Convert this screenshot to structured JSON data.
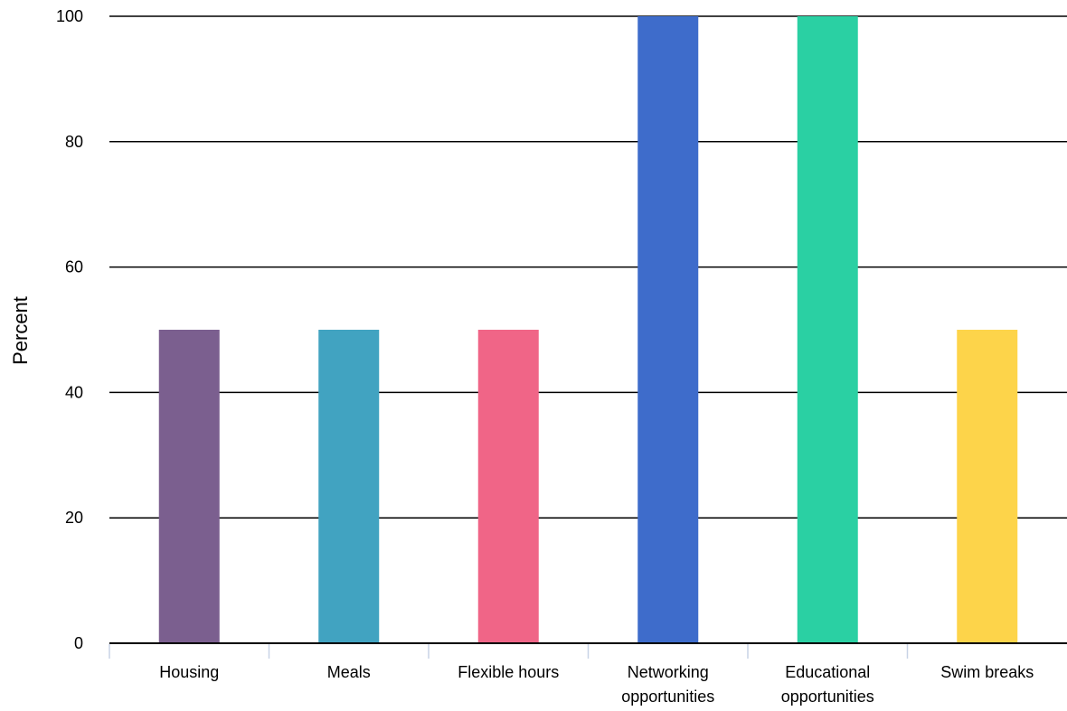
{
  "chart_data": {
    "type": "bar",
    "ylabel": "Percent",
    "ylim": [
      0,
      100
    ],
    "yticks": [
      0,
      20,
      40,
      60,
      80,
      100
    ],
    "grid": true,
    "categories": [
      "Housing",
      "Meals",
      "Flexible hours",
      "Networking opportunities",
      "Educational opportunities",
      "Swim breaks"
    ],
    "category_lines": [
      [
        "Housing"
      ],
      [
        "Meals"
      ],
      [
        "Flexible hours"
      ],
      [
        "Networking",
        "opportunities"
      ],
      [
        "Educational",
        "opportunities"
      ],
      [
        "Swim breaks"
      ]
    ],
    "values": [
      50,
      50,
      50,
      100,
      100,
      50
    ],
    "colors": [
      "#7b5f8f",
      "#41a3c1",
      "#f06587",
      "#3e6ccb",
      "#2ad0a3",
      "#fdd44a"
    ],
    "gridline_color": "#000000",
    "axis_tick_color": "#c8d3e6"
  }
}
